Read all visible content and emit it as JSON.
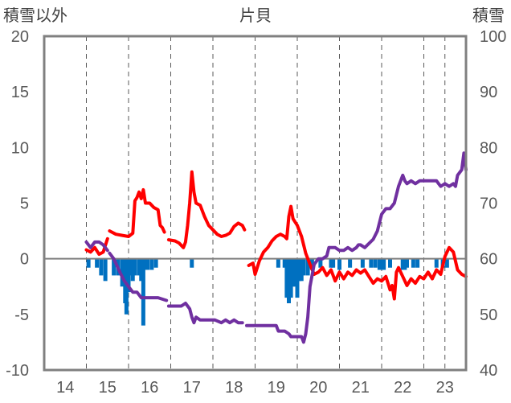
{
  "chart_data": {
    "type": "line+bar",
    "title": "片貝",
    "left_axis": {
      "label": "積雪以外",
      "ylim": [
        -10,
        20
      ],
      "ticks": [
        "-10",
        "-5",
        "0",
        "5",
        "10",
        "15",
        "20"
      ]
    },
    "right_axis": {
      "label": "積雪",
      "ylim": [
        40,
        100
      ],
      "ticks": [
        "40",
        "50",
        "60",
        "70",
        "80",
        "90",
        "100"
      ]
    },
    "x_axis": {
      "xlim": [
        13.5,
        23.5
      ],
      "ticks": [
        "14",
        "15",
        "16",
        "17",
        "18",
        "19",
        "20",
        "21",
        "22",
        "23"
      ]
    },
    "grid": "vertical dashed",
    "colors": {
      "red": "#ff0000",
      "purple": "#7030a0",
      "bar": "#0070c0",
      "frame": "#808080"
    },
    "series": [
      {
        "color": "red",
        "axis": "left",
        "segments": [
          [
            [
              14.5,
              0.8
            ],
            [
              14.6,
              0.6
            ],
            [
              14.7,
              1.0
            ],
            [
              14.8,
              0.4
            ],
            [
              14.9,
              0.6
            ],
            [
              15.0,
              1.8
            ]
          ],
          [
            [
              15.05,
              2.5
            ],
            [
              15.2,
              2.2
            ],
            [
              15.35,
              2.1
            ],
            [
              15.5,
              2.0
            ],
            [
              15.6,
              2.3
            ],
            [
              15.65,
              5.2
            ],
            [
              15.7,
              5.5
            ],
            [
              15.75,
              6.0
            ],
            [
              15.8,
              5.4
            ],
            [
              15.85,
              6.2
            ],
            [
              15.9,
              5.0
            ],
            [
              16.0,
              5.0
            ],
            [
              16.1,
              4.6
            ],
            [
              16.2,
              4.4
            ],
            [
              16.25,
              3.0
            ],
            [
              16.3,
              2.8
            ],
            [
              16.35,
              2.4
            ]
          ],
          [
            [
              16.45,
              1.7
            ],
            [
              16.6,
              1.6
            ],
            [
              16.7,
              1.4
            ],
            [
              16.8,
              1.0
            ],
            [
              16.85,
              1.5
            ],
            [
              16.9,
              3.0
            ],
            [
              16.95,
              5.0
            ],
            [
              17.0,
              7.8
            ],
            [
              17.05,
              6.0
            ],
            [
              17.1,
              5.0
            ],
            [
              17.2,
              4.8
            ],
            [
              17.3,
              3.8
            ],
            [
              17.4,
              3.0
            ],
            [
              17.5,
              2.6
            ],
            [
              17.6,
              2.2
            ],
            [
              17.7,
              2.0
            ],
            [
              17.8,
              2.1
            ],
            [
              17.9,
              2.3
            ],
            [
              18.0,
              2.9
            ],
            [
              18.1,
              3.2
            ],
            [
              18.2,
              3.0
            ],
            [
              18.25,
              2.6
            ]
          ],
          [
            [
              18.35,
              -0.6
            ],
            [
              18.45,
              -0.4
            ],
            [
              18.5,
              -1.4
            ],
            [
              18.6,
              -0.2
            ],
            [
              18.7,
              0.6
            ],
            [
              18.8,
              1.0
            ],
            [
              18.9,
              1.6
            ],
            [
              19.0,
              2.0
            ],
            [
              19.1,
              2.2
            ],
            [
              19.2,
              2.0
            ],
            [
              19.25,
              1.8
            ],
            [
              19.3,
              3.8
            ],
            [
              19.35,
              4.7
            ],
            [
              19.4,
              3.6
            ],
            [
              19.5,
              3.0
            ],
            [
              19.6,
              2.0
            ],
            [
              19.7,
              0.5
            ],
            [
              19.8,
              -0.5
            ],
            [
              19.9,
              -1.4
            ],
            [
              20.0,
              -1.2
            ],
            [
              20.1,
              -0.8
            ],
            [
              20.2,
              -1.5
            ],
            [
              20.3,
              -1.0
            ],
            [
              20.4,
              -2.0
            ],
            [
              20.5,
              -1.2
            ],
            [
              20.6,
              -1.8
            ],
            [
              20.7,
              -1.2
            ],
            [
              20.8,
              -1.5
            ],
            [
              20.9,
              -1.0
            ],
            [
              21.0,
              -1.3
            ],
            [
              21.1,
              -1.0
            ],
            [
              21.2,
              -1.6
            ],
            [
              21.3,
              -2.2
            ],
            [
              21.4,
              -1.8
            ],
            [
              21.5,
              -2.0
            ],
            [
              21.6,
              -1.6
            ],
            [
              21.7,
              -2.8
            ],
            [
              21.75,
              -2.4
            ],
            [
              21.8,
              -3.6
            ],
            [
              21.85,
              -1.2
            ],
            [
              21.9,
              -0.8
            ],
            [
              22.0,
              -1.6
            ],
            [
              22.1,
              -2.4
            ],
            [
              22.2,
              -1.8
            ],
            [
              22.3,
              -2.2
            ],
            [
              22.4,
              -1.6
            ],
            [
              22.5,
              -1.8
            ],
            [
              22.6,
              -1.2
            ],
            [
              22.7,
              -1.8
            ],
            [
              22.8,
              -1.0
            ],
            [
              22.9,
              -1.4
            ],
            [
              23.0,
              0.2
            ],
            [
              23.1,
              1.0
            ],
            [
              23.2,
              0.6
            ],
            [
              23.3,
              -1.0
            ],
            [
              23.4,
              -1.4
            ],
            [
              23.5,
              -1.6
            ]
          ]
        ]
      },
      {
        "color": "purple",
        "axis": "right",
        "segments": [
          [
            [
              14.5,
              63.0
            ],
            [
              14.6,
              62.0
            ],
            [
              14.7,
              63.0
            ],
            [
              14.8,
              63.0
            ],
            [
              14.9,
              62.5
            ],
            [
              15.0,
              61.5
            ]
          ],
          [
            [
              15.05,
              61.0
            ],
            [
              15.15,
              60.0
            ],
            [
              15.3,
              57.5
            ],
            [
              15.4,
              56.0
            ],
            [
              15.5,
              55.0
            ],
            [
              15.6,
              54.0
            ],
            [
              15.7,
              54.0
            ],
            [
              15.8,
              53.0
            ],
            [
              16.0,
              53.0
            ],
            [
              16.2,
              53.0
            ],
            [
              16.4,
              52.5
            ]
          ],
          [
            [
              16.45,
              51.5
            ],
            [
              16.6,
              51.5
            ],
            [
              16.75,
              51.5
            ],
            [
              16.85,
              52.0
            ],
            [
              16.95,
              51.0
            ],
            [
              17.0,
              49.5
            ],
            [
              17.05,
              48.5
            ],
            [
              17.1,
              49.5
            ],
            [
              17.2,
              49.0
            ],
            [
              17.3,
              49.0
            ],
            [
              17.4,
              49.0
            ],
            [
              17.55,
              49.0
            ],
            [
              17.7,
              48.5
            ],
            [
              17.8,
              49.0
            ],
            [
              17.9,
              48.5
            ],
            [
              18.0,
              49.0
            ],
            [
              18.1,
              48.5
            ],
            [
              18.2,
              48.5
            ]
          ],
          [
            [
              18.3,
              48.0
            ],
            [
              18.6,
              48.0
            ],
            [
              18.9,
              48.0
            ],
            [
              19.0,
              48.0
            ],
            [
              19.05,
              47.0
            ],
            [
              19.2,
              47.0
            ],
            [
              19.3,
              46.5
            ],
            [
              19.35,
              46.0
            ],
            [
              19.5,
              46.0
            ],
            [
              19.6,
              46.0
            ],
            [
              19.65,
              45.0
            ],
            [
              19.7,
              46.5
            ],
            [
              19.75,
              49.5
            ],
            [
              19.8,
              55.0
            ],
            [
              19.9,
              59.0
            ],
            [
              20.0,
              60.0
            ],
            [
              20.1,
              60.0
            ],
            [
              20.2,
              60.5
            ],
            [
              20.25,
              62.0
            ],
            [
              20.4,
              62.0
            ],
            [
              20.5,
              61.5
            ],
            [
              20.6,
              61.5
            ],
            [
              20.7,
              62.0
            ],
            [
              20.8,
              61.5
            ],
            [
              20.9,
              62.0
            ],
            [
              20.95,
              62.5
            ],
            [
              21.0,
              62.5
            ],
            [
              21.1,
              62.0
            ],
            [
              21.3,
              63.5
            ],
            [
              21.4,
              65.0
            ],
            [
              21.5,
              68.0
            ],
            [
              21.6,
              69.0
            ],
            [
              21.7,
              69.0
            ],
            [
              21.8,
              70.0
            ],
            [
              21.9,
              73.0
            ],
            [
              22.0,
              75.0
            ],
            [
              22.05,
              74.0
            ],
            [
              22.1,
              73.5
            ],
            [
              22.2,
              74.0
            ],
            [
              22.3,
              73.5
            ],
            [
              22.4,
              74.0
            ],
            [
              22.6,
              74.0
            ],
            [
              22.8,
              74.0
            ],
            [
              22.85,
              73.5
            ],
            [
              22.9,
              73.0
            ],
            [
              23.0,
              73.5
            ],
            [
              23.1,
              73.0
            ],
            [
              23.2,
              73.5
            ],
            [
              23.25,
              73.0
            ],
            [
              23.3,
              75.0
            ],
            [
              23.4,
              76.0
            ],
            [
              23.45,
              79.0
            ],
            [
              23.5,
              76.0
            ]
          ]
        ]
      },
      {
        "type": "bar",
        "color": "bar",
        "axis": "left",
        "points": [
          [
            14.55,
            -0.8
          ],
          [
            14.75,
            -0.8
          ],
          [
            14.85,
            -1.5
          ],
          [
            14.95,
            -2.0
          ],
          [
            15.15,
            -1.5
          ],
          [
            15.25,
            -1.5
          ],
          [
            15.35,
            -2.5
          ],
          [
            15.42,
            -4.0
          ],
          [
            15.45,
            -5.0
          ],
          [
            15.5,
            -3.0
          ],
          [
            15.55,
            -1.5
          ],
          [
            15.6,
            -2.0
          ],
          [
            15.65,
            -1.5
          ],
          [
            15.75,
            -1.5
          ],
          [
            15.8,
            -2.0
          ],
          [
            15.85,
            -6.0
          ],
          [
            15.9,
            -1.0
          ],
          [
            15.95,
            -1.0
          ],
          [
            16.05,
            -1.0
          ],
          [
            16.15,
            -0.8
          ],
          [
            17.0,
            -0.8
          ],
          [
            19.05,
            -0.8
          ],
          [
            19.2,
            -0.8
          ],
          [
            19.25,
            -3.5
          ],
          [
            19.3,
            -4.0
          ],
          [
            19.35,
            -3.5
          ],
          [
            19.4,
            -2.5
          ],
          [
            19.45,
            -2.5
          ],
          [
            19.5,
            -3.5
          ],
          [
            19.55,
            -2.0
          ],
          [
            19.6,
            -2.0
          ],
          [
            19.65,
            -1.5
          ],
          [
            19.75,
            -1.5
          ],
          [
            19.85,
            -1.0
          ],
          [
            20.05,
            -0.8
          ],
          [
            20.3,
            -0.8
          ],
          [
            20.35,
            -0.8
          ],
          [
            20.5,
            -1.0
          ],
          [
            20.75,
            -0.8
          ],
          [
            21.05,
            -0.8
          ],
          [
            21.25,
            -0.8
          ],
          [
            21.35,
            -0.8
          ],
          [
            21.45,
            -1.0
          ],
          [
            21.5,
            -1.0
          ],
          [
            21.55,
            -1.0
          ],
          [
            21.7,
            -0.8
          ],
          [
            22.0,
            -1.0
          ],
          [
            22.05,
            -1.0
          ],
          [
            22.1,
            -0.8
          ],
          [
            22.25,
            -0.8
          ],
          [
            22.35,
            -0.8
          ],
          [
            22.8,
            -0.8
          ],
          [
            22.95,
            -0.8
          ],
          [
            23.05,
            -0.8
          ]
        ]
      }
    ]
  }
}
